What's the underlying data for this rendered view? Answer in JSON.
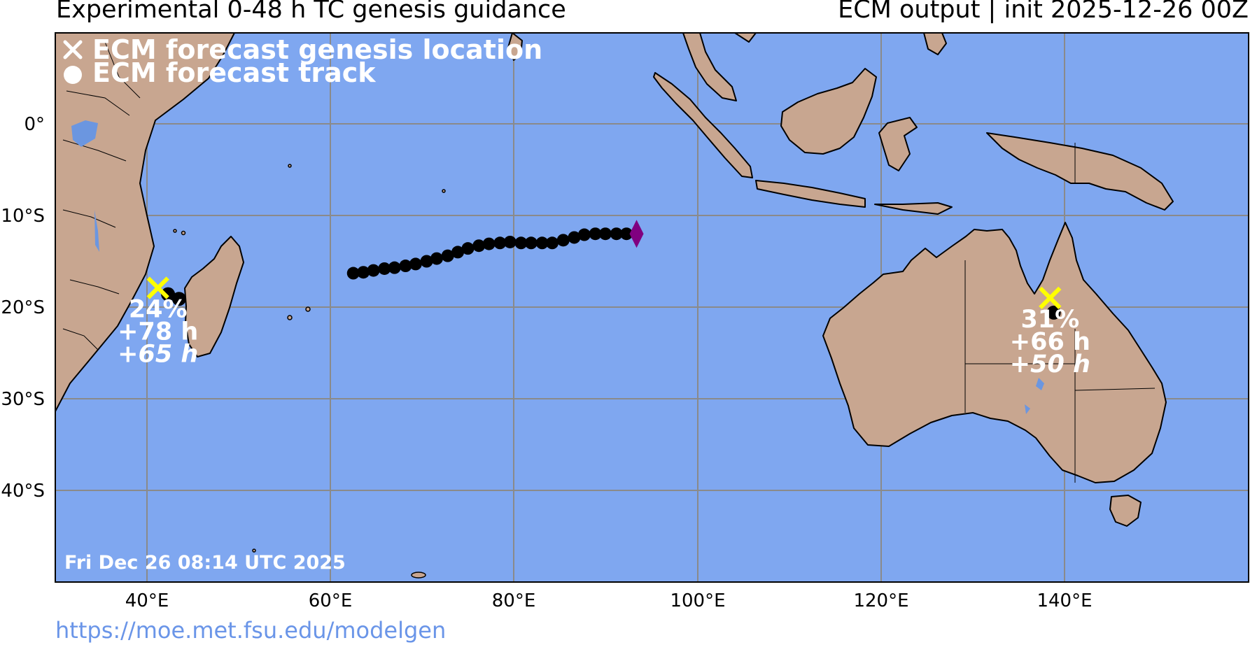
{
  "header": {
    "title": "Experimental 0-48 h TC genesis guidance",
    "subtitle": "ECM output | init 2025-12-26 00Z"
  },
  "legend": {
    "genesis_label": "ECM forecast genesis location",
    "track_label": "ECM forecast track"
  },
  "axes": {
    "lat_ticks": [
      "0°",
      "10°S",
      "20°S",
      "30°S",
      "40°S"
    ],
    "lon_ticks": [
      "40°E",
      "60°E",
      "80°E",
      "100°E",
      "120°E",
      "140°E"
    ]
  },
  "timestamp": "Fri Dec 26 08:14 UTC 2025",
  "footer": {
    "url": "https://moe.met.fsu.edu/modelgen"
  },
  "colors": {
    "ocean": "#7fa7f0",
    "land": "#c8a690",
    "grid": "#8a8a8a",
    "genesis_marker": "#ffff00",
    "track": "#000000",
    "track_end_marker": "#800080",
    "lake": "#6b96e0"
  },
  "genesis_events": [
    {
      "id": "madagascar",
      "probability": "24%",
      "lead_time": "+78 h",
      "lead_time_alt": "65 h",
      "lon": 41.2,
      "lat": -17.9,
      "track": [
        [
          42.3,
          -18.6
        ],
        [
          43.5,
          -19.1
        ]
      ]
    },
    {
      "id": "australia",
      "probability": "31%",
      "lead_time": "+66 h",
      "lead_time_alt": "50 h",
      "lon": 138.5,
      "lat": -19.0,
      "track": [
        [
          138.9,
          -20.6
        ]
      ]
    }
  ],
  "open_track": {
    "points": [
      [
        62.5,
        -16.3
      ],
      [
        63.6,
        -16.2
      ],
      [
        64.7,
        -16.0
      ],
      [
        65.9,
        -15.8
      ],
      [
        67.0,
        -15.7
      ],
      [
        68.2,
        -15.5
      ],
      [
        69.3,
        -15.3
      ],
      [
        70.5,
        -15.0
      ],
      [
        71.6,
        -14.7
      ],
      [
        72.8,
        -14.4
      ],
      [
        73.9,
        -14.0
      ],
      [
        75.0,
        -13.6
      ],
      [
        76.2,
        -13.3
      ],
      [
        77.3,
        -13.1
      ],
      [
        78.5,
        -13.0
      ],
      [
        79.6,
        -12.9
      ],
      [
        80.8,
        -13.0
      ],
      [
        81.9,
        -13.0
      ],
      [
        83.1,
        -13.0
      ],
      [
        84.2,
        -13.0
      ],
      [
        85.4,
        -12.7
      ],
      [
        86.6,
        -12.4
      ],
      [
        87.7,
        -12.1
      ],
      [
        88.9,
        -12.0
      ],
      [
        90.0,
        -12.0
      ],
      [
        91.2,
        -12.0
      ],
      [
        92.3,
        -12.0
      ]
    ],
    "end": [
      93.4,
      -12.0
    ]
  }
}
